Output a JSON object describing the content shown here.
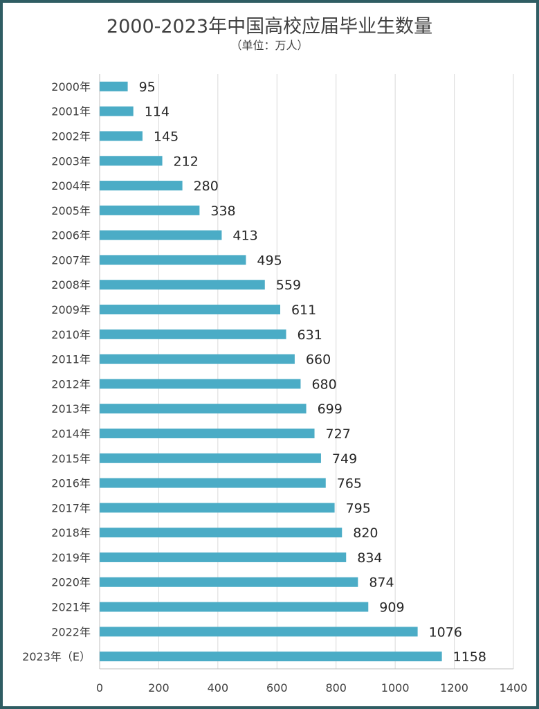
{
  "chart_data": {
    "type": "bar",
    "orientation": "horizontal",
    "title": "2000-2023年中国高校应届毕业生数量",
    "subtitle": "（单位：万人）",
    "categories": [
      "2000年",
      "2001年",
      "2002年",
      "2003年",
      "2004年",
      "2005年",
      "2006年",
      "2007年",
      "2008年",
      "2009年",
      "2010年",
      "2011年",
      "2012年",
      "2013年",
      "2014年",
      "2015年",
      "2016年",
      "2017年",
      "2018年",
      "2019年",
      "2020年",
      "2021年",
      "2022年",
      "2023年（E）"
    ],
    "values": [
      95,
      114,
      145,
      212,
      280,
      338,
      413,
      495,
      559,
      611,
      631,
      660,
      680,
      699,
      727,
      749,
      765,
      795,
      820,
      834,
      874,
      909,
      1076,
      1158
    ],
    "xlim": [
      0,
      1400
    ],
    "xticks": [
      0,
      200,
      400,
      600,
      800,
      1000,
      1200,
      1400
    ],
    "grid": true,
    "bar_color": "#4bacc6",
    "frame_color": "#2f5d63",
    "text_color": "#404040"
  }
}
